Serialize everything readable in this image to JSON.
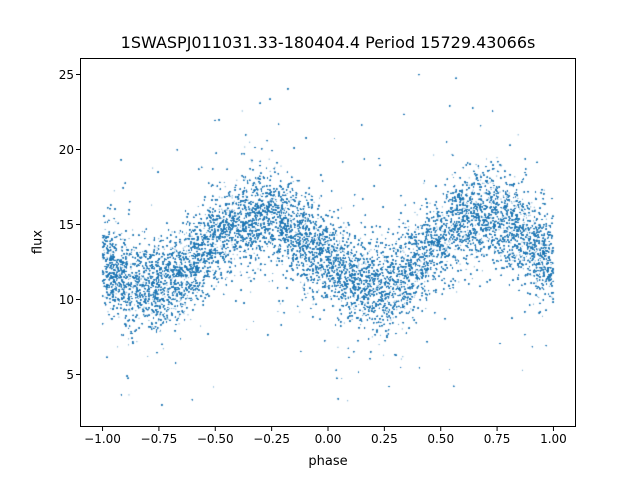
{
  "chart_data": {
    "type": "scatter",
    "title": "1SWASPJ011031.33-180404.4 Period 15729.43066s",
    "xlabel": "phase",
    "ylabel": "flux",
    "xlim": [
      -1.1,
      1.1
    ],
    "ylim": [
      1.5,
      26.1
    ],
    "xticks": [
      -1.0,
      -0.75,
      -0.5,
      -0.25,
      0.0,
      0.25,
      0.5,
      0.75,
      1.0
    ],
    "xtick_labels": [
      "−1.00",
      "−0.75",
      "−0.50",
      "−0.25",
      "0.00",
      "0.25",
      "0.50",
      "0.75",
      "1.00"
    ],
    "yticks": [
      5,
      10,
      15,
      20,
      25
    ],
    "ytick_labels": [
      "5",
      "10",
      "15",
      "20",
      "25"
    ],
    "grid": false,
    "series": [
      {
        "name": "flux",
        "color": "#1f77b4",
        "x_range": [
          -1.0,
          1.0
        ],
        "y_range": [
          2.7,
          25.0
        ],
        "n_points": 60000,
        "trend": {
          "model": "sinusoid",
          "period_phase": 1.0,
          "mean": 13.2,
          "amplitude": 2.3,
          "minimum_phase": [
            -0.8,
            0.2
          ],
          "maximum_phase": [
            -0.3,
            0.7
          ]
        },
        "scatter_sigma": 1.5
      }
    ]
  }
}
